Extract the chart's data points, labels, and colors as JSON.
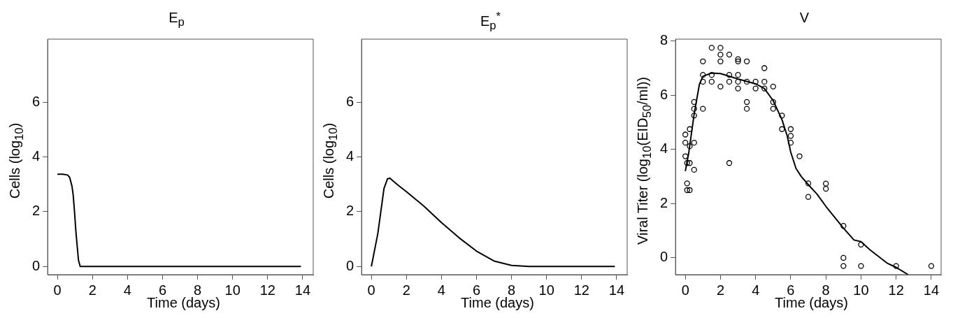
{
  "chart_data": [
    {
      "type": "line",
      "title": "E$_{p}$",
      "xlabel": "Time (days)",
      "ylabel": "Cells (log$_{10}$)",
      "xlim": [
        -0.56,
        14.6
      ],
      "ylim": [
        -0.3,
        8.3
      ],
      "xticks": [
        0,
        2,
        4,
        6,
        8,
        10,
        12,
        14
      ],
      "yticks": [
        0,
        2,
        4,
        6
      ],
      "series": [
        {
          "color": "#000000",
          "x": [
            0,
            0.3,
            0.58,
            0.7,
            0.83,
            0.9,
            0.97,
            1.05,
            1.13,
            1.2,
            1.3,
            1.5,
            13.9
          ],
          "values": [
            3.37,
            3.37,
            3.34,
            3.25,
            2.93,
            2.6,
            2.03,
            1.3,
            0.72,
            0.23,
            0,
            0,
            0
          ]
        }
      ]
    },
    {
      "type": "line",
      "title": "E$_{p}$$^{*}$",
      "xlabel": "Time (days)",
      "ylabel": "Cells (log$_{10}$)",
      "xlim": [
        -0.56,
        14.6
      ],
      "ylim": [
        -0.3,
        8.3
      ],
      "xticks": [
        0,
        2,
        4,
        6,
        8,
        10,
        12,
        14
      ],
      "yticks": [
        0,
        2,
        4,
        6
      ],
      "series": [
        {
          "color": "#000000",
          "x": [
            0,
            0.37,
            0.72,
            0.92,
            1.06,
            1.5,
            2,
            3,
            4,
            5,
            6,
            7,
            8,
            9,
            13.9
          ],
          "values": [
            0,
            1.21,
            2.85,
            3.2,
            3.22,
            2.98,
            2.73,
            2.2,
            1.6,
            1.05,
            0.56,
            0.2,
            0.04,
            0,
            0
          ]
        }
      ]
    },
    {
      "type": "scatter",
      "title": "V",
      "xlabel": "Time (days)",
      "ylabel": "Viral Titer (log$_{10}$(EID$_{50}$/ml))",
      "xlim": [
        -0.56,
        14.56
      ],
      "ylim": [
        -0.62,
        8.07
      ],
      "xticks": [
        0,
        2,
        4,
        6,
        8,
        10,
        12,
        14
      ],
      "yticks": [
        0,
        2,
        4,
        6,
        8
      ],
      "series": [
        {
          "type": "line",
          "color": "#000000",
          "x": [
            0,
            0.2,
            0.5,
            0.8,
            1,
            1.5,
            2,
            3,
            4,
            4.5,
            5,
            5.5,
            5.8,
            6,
            6.3,
            6.6,
            7,
            7.5,
            8,
            8.5,
            9,
            9.6,
            10,
            10.5,
            11,
            11.5,
            12,
            12.69
          ],
          "values": [
            3.2,
            3.9,
            5.3,
            6.4,
            6.7,
            6.82,
            6.8,
            6.6,
            6.42,
            6.25,
            5.8,
            5.1,
            4.5,
            3.9,
            3.3,
            3,
            2.7,
            2.35,
            1.9,
            1.5,
            1.1,
            0.66,
            0.6,
            0.3,
            0.05,
            -0.2,
            -0.35,
            -0.62
          ]
        },
        {
          "type": "scatter",
          "marker": "circle",
          "color": "#000000",
          "x": [
            0,
            0,
            0,
            0.1,
            0.1,
            0.1,
            0.25,
            0.25,
            0.25,
            0.25,
            0.5,
            0.5,
            0.5,
            0.5,
            0.5,
            1,
            1,
            1,
            1,
            1.5,
            1.5,
            1.5,
            2,
            2,
            2,
            2,
            2.5,
            2.5,
            2.5,
            2.5,
            3,
            3,
            3,
            3,
            3,
            3.5,
            3.5,
            3.5,
            3.5,
            4,
            4,
            4.5,
            4.5,
            4.5,
            5,
            5,
            5,
            5.5,
            5.5,
            6,
            6,
            6,
            6.5,
            7,
            7,
            8,
            8,
            9,
            9,
            9,
            10,
            10,
            12,
            14
          ],
          "values": [
            4.55,
            4.25,
            3.75,
            3.5,
            2.75,
            2.5,
            4.75,
            4.12,
            3.5,
            2.5,
            5.75,
            5.5,
            5.25,
            4.25,
            3.25,
            7.25,
            6.75,
            6.5,
            5.5,
            7.75,
            6.75,
            6.5,
            7.75,
            7.5,
            7.25,
            6.32,
            7.5,
            6.75,
            6.5,
            3.5,
            7.33,
            7.25,
            6.75,
            6.5,
            6.25,
            7.25,
            6.5,
            5.75,
            5.5,
            6.5,
            6.25,
            7,
            6.5,
            6.25,
            6.32,
            5.75,
            5.5,
            5.25,
            4.75,
            4.75,
            4.5,
            4.25,
            3.75,
            2.75,
            2.25,
            2.74,
            2.55,
            1.18,
            0,
            -0.3,
            0.49,
            -0.3,
            -0.3,
            -0.3
          ]
        }
      ]
    }
  ]
}
